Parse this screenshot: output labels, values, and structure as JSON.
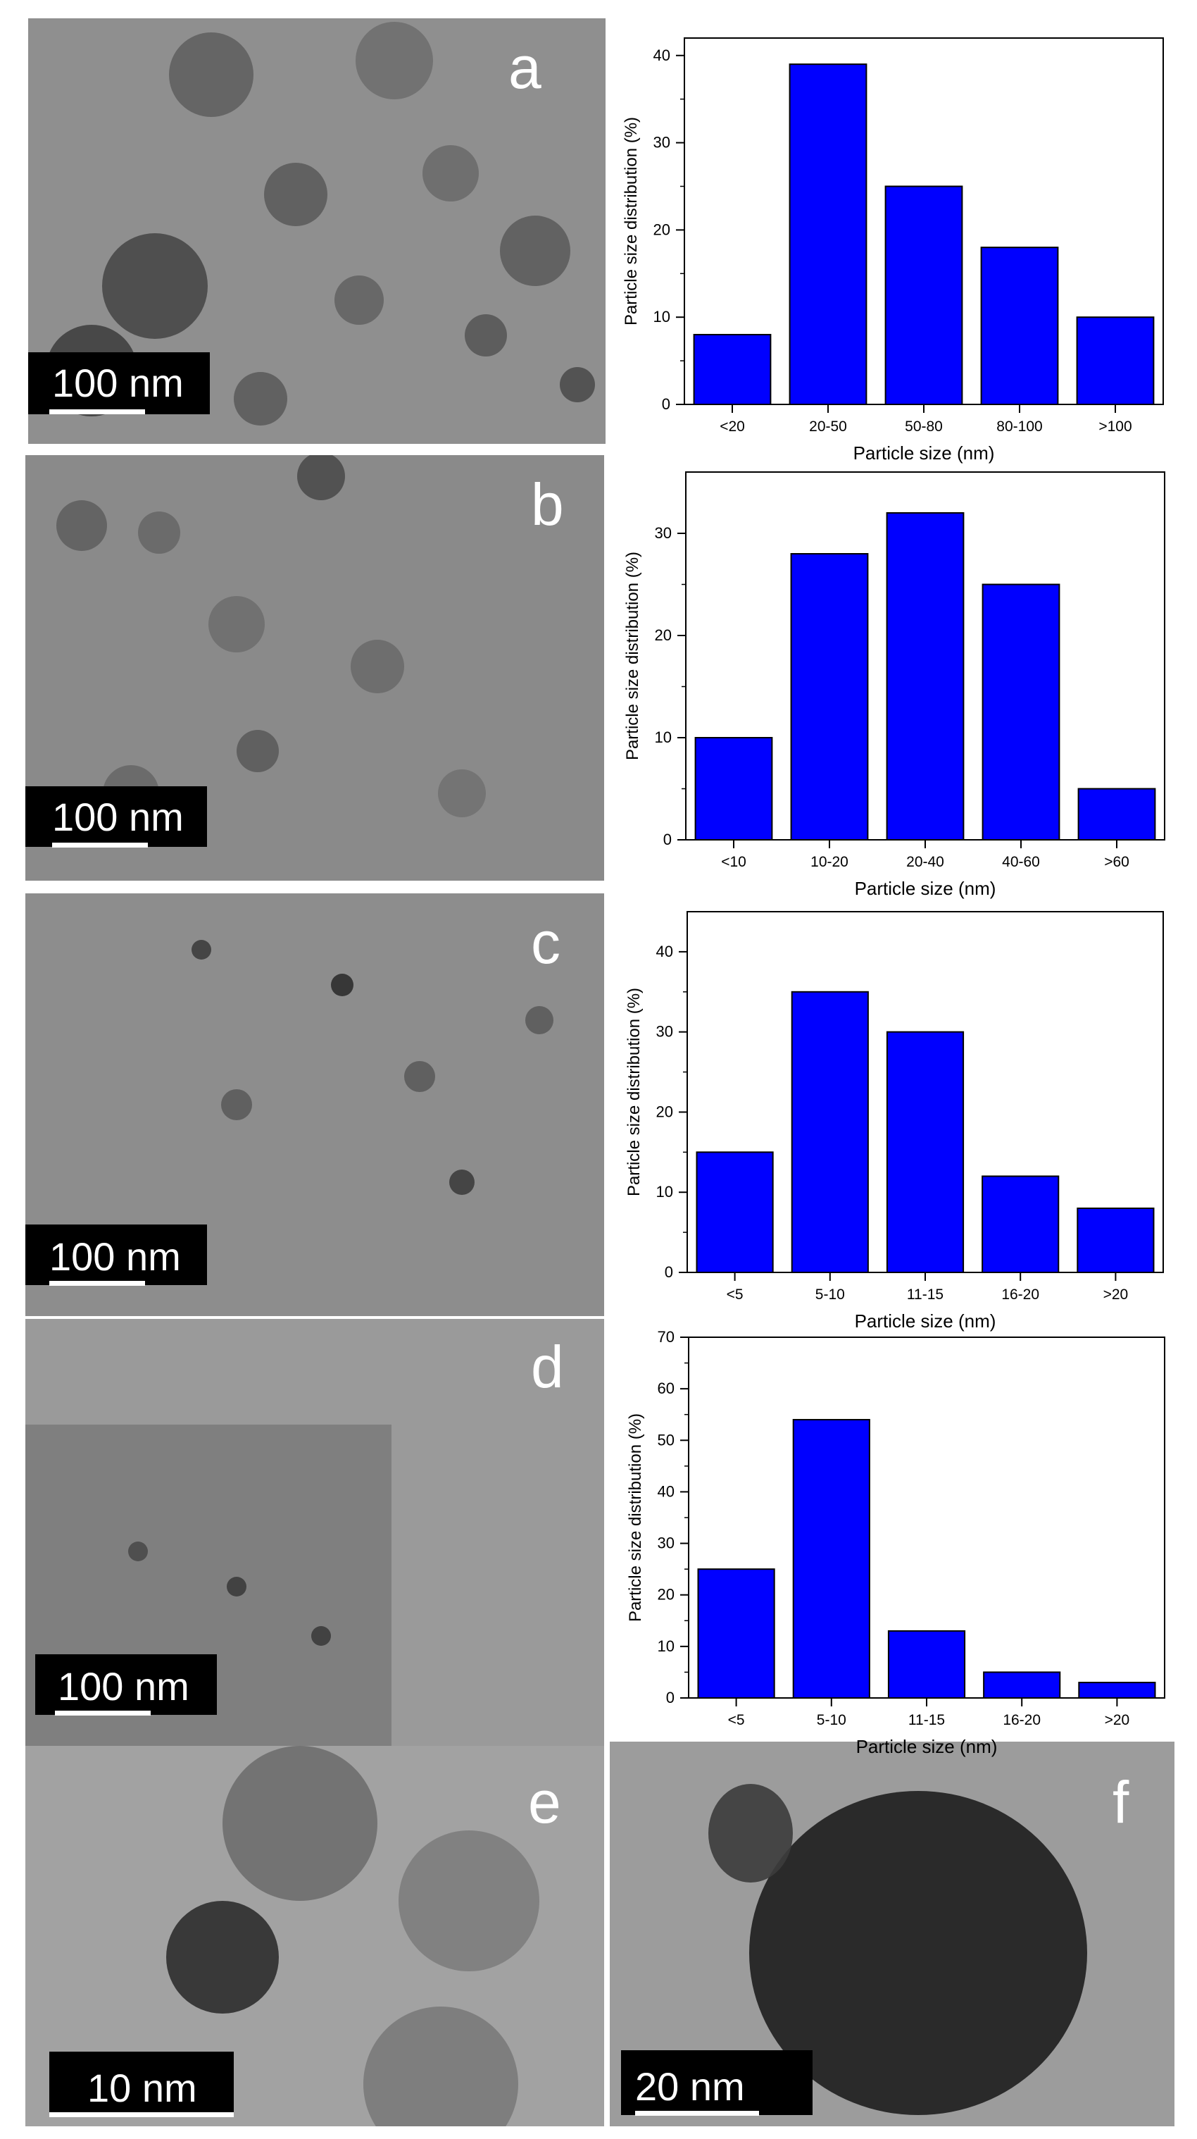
{
  "panels": [
    {
      "letter": "a",
      "scale_label": "100 nm"
    },
    {
      "letter": "b",
      "scale_label": "100 nm"
    },
    {
      "letter": "c",
      "scale_label": "100 nm"
    },
    {
      "letter": "d",
      "scale_label": "100 nm"
    },
    {
      "letter": "e",
      "scale_label": "10 nm"
    },
    {
      "letter": "f",
      "scale_label": "20 nm"
    }
  ],
  "colors": {
    "bar_fill": "#0000ff",
    "bar_stroke": "#000000"
  },
  "chart_data": [
    {
      "type": "bar",
      "panel": "a",
      "categories": [
        "<20",
        "20-50",
        "50-80",
        "80-100",
        ">100"
      ],
      "values": [
        8,
        39,
        25,
        18,
        10
      ],
      "xlabel": "Particle size (nm)",
      "ylabel": "Particle size distribution (%)",
      "ylim": [
        0,
        42
      ],
      "yticks": [
        0,
        10,
        20,
        30,
        40
      ],
      "grid": false
    },
    {
      "type": "bar",
      "panel": "b",
      "categories": [
        "<10",
        "10-20",
        "20-40",
        "40-60",
        ">60"
      ],
      "values": [
        10,
        28,
        32,
        25,
        5
      ],
      "xlabel": "Particle size (nm)",
      "ylabel": "Particle size distribution (%)",
      "ylim": [
        0,
        36
      ],
      "yticks": [
        0,
        10,
        20,
        30
      ],
      "grid": false
    },
    {
      "type": "bar",
      "panel": "c",
      "categories": [
        "<5",
        "5-10",
        "11-15",
        "16-20",
        ">20"
      ],
      "values": [
        15,
        35,
        30,
        12,
        8
      ],
      "xlabel": "Particle size (nm)",
      "ylabel": "Particle size distribution (%)",
      "ylim": [
        0,
        45
      ],
      "yticks": [
        0,
        10,
        20,
        30,
        40
      ],
      "grid": false
    },
    {
      "type": "bar",
      "panel": "d",
      "categories": [
        "<5",
        "5-10",
        "11-15",
        "16-20",
        ">20"
      ],
      "values": [
        25,
        54,
        13,
        5,
        3
      ],
      "xlabel": "Particle size (nm)",
      "ylabel": "Particle size distribution (%)",
      "ylim": [
        0,
        70
      ],
      "yticks": [
        0,
        10,
        20,
        30,
        40,
        50,
        60,
        70
      ],
      "grid": false
    }
  ]
}
